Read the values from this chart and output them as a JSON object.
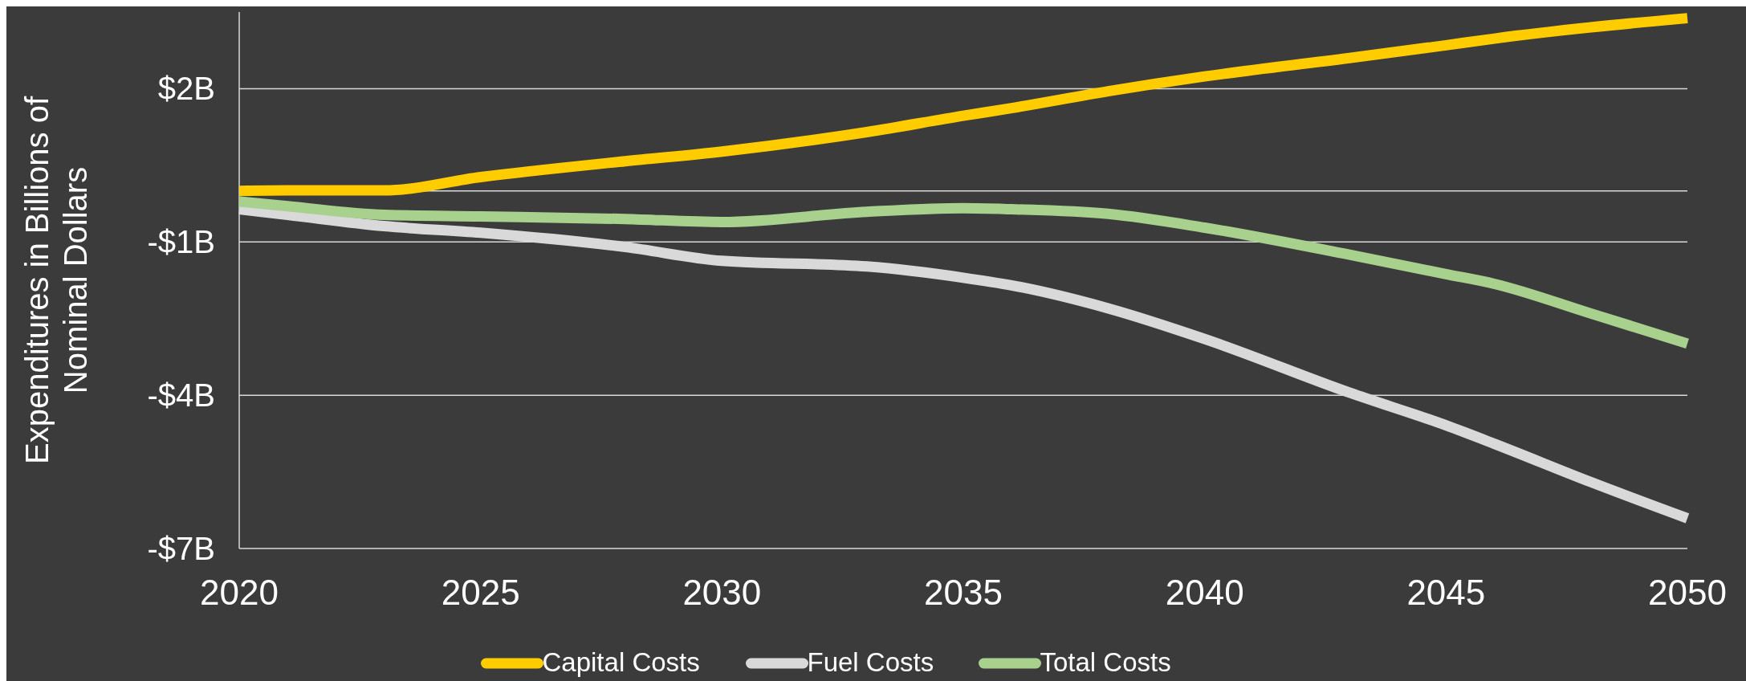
{
  "chart_data": {
    "type": "line",
    "ylabel": "Expenditures in Billions of Nominal Dollars",
    "x": [
      2020,
      2021,
      2023,
      2025,
      2028,
      2030,
      2033,
      2035,
      2036,
      2038,
      2040,
      2043,
      2045,
      2046,
      2048,
      2050
    ],
    "xlim": [
      2020,
      2050
    ],
    "xticks": [
      2020,
      2025,
      2030,
      2035,
      2040,
      2045,
      2050
    ],
    "ylim": [
      -7,
      3.5
    ],
    "yticks": [
      {
        "value": 2,
        "label": "$2B"
      },
      {
        "value": -1,
        "label": "-$1B"
      },
      {
        "value": -4,
        "label": "-$4B"
      },
      {
        "value": -7,
        "label": "-$7B"
      }
    ],
    "grid": "y",
    "legend": "bottom",
    "line_style": "solid",
    "marker": "none",
    "series": [
      {
        "name": "Capital Costs",
        "color": "#ffcc00",
        "values": [
          0,
          0.01,
          0.01,
          0.27,
          0.58,
          0.77,
          1.15,
          1.47,
          1.62,
          1.95,
          2.24,
          2.6,
          2.85,
          2.98,
          3.2,
          3.38
        ]
      },
      {
        "name": "Fuel Costs",
        "color": "#d9d9d9",
        "values": [
          -0.36,
          -0.47,
          -0.69,
          -0.82,
          -1.1,
          -1.37,
          -1.48,
          -1.7,
          -1.85,
          -2.3,
          -2.9,
          -3.95,
          -4.59,
          -4.95,
          -5.7,
          -6.41
        ]
      },
      {
        "name": "Total Costs",
        "color": "#a9d18e",
        "values": [
          -0.21,
          -0.3,
          -0.47,
          -0.5,
          -0.55,
          -0.61,
          -0.41,
          -0.34,
          -0.36,
          -0.45,
          -0.72,
          -1.25,
          -1.63,
          -1.82,
          -2.4,
          -2.99
        ]
      }
    ]
  }
}
